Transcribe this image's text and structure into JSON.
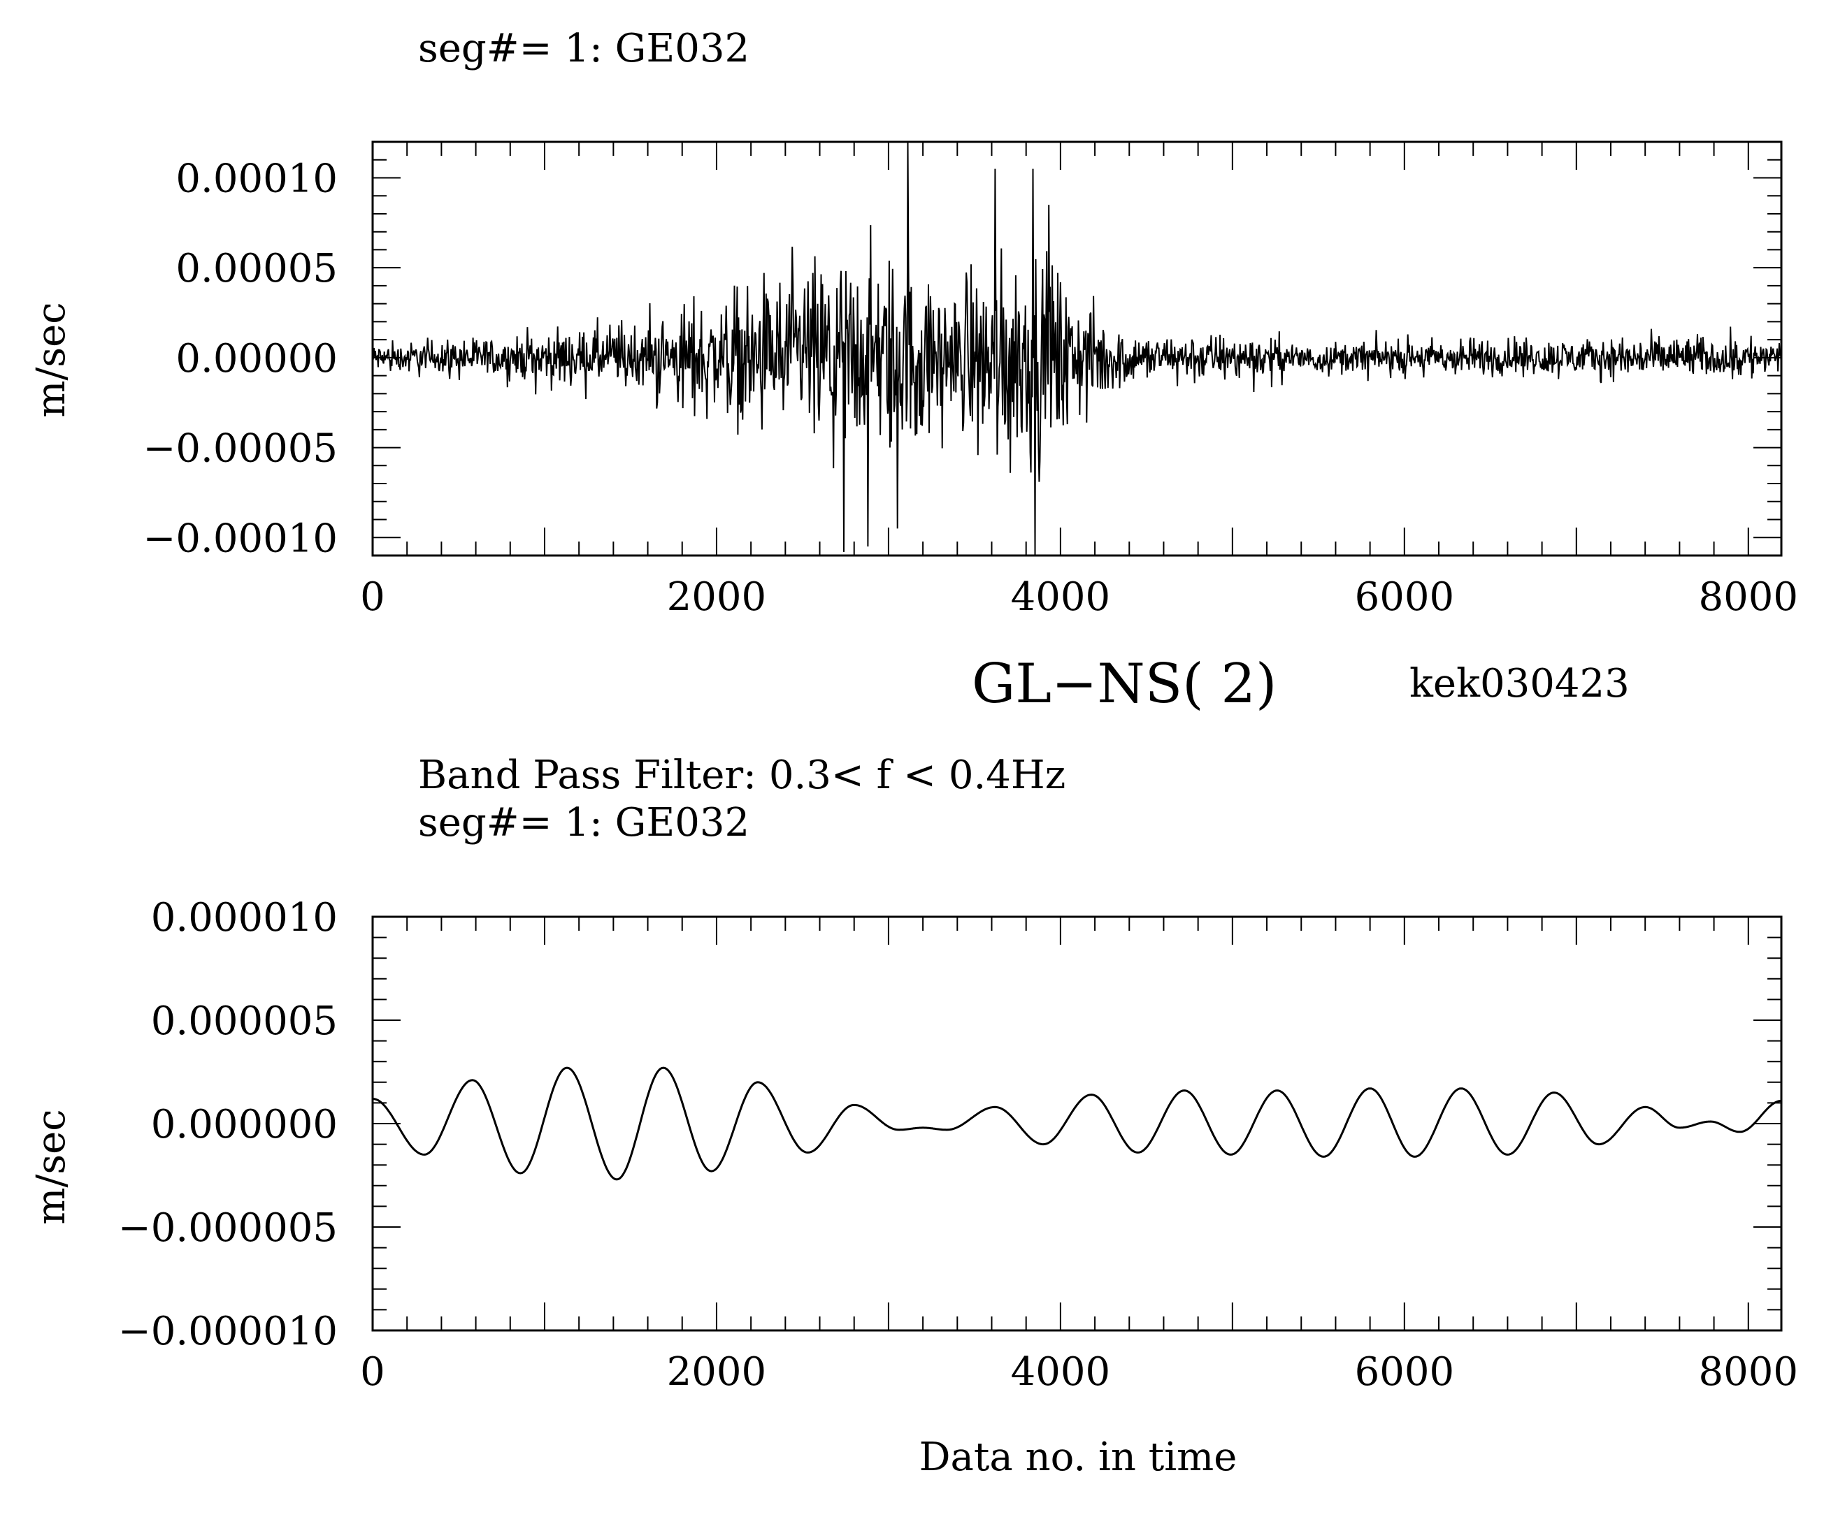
{
  "page": {
    "top_title": "seg#=  1: GE032",
    "center_label": "GL−NS( 2)",
    "center_tag": "kek030423",
    "bottom_title_line1": "Band Pass Filter:  0.3< f <  0.4Hz",
    "bottom_title_line2": "seg#=  1: GE032",
    "xlabel": "Data no. in time"
  },
  "chart_data": [
    {
      "type": "line",
      "title": "seg#=  1: GE032",
      "xlabel": "",
      "ylabel": "m/sec",
      "xlim": [
        0,
        8192
      ],
      "ylim": [
        -0.00011,
        0.00012
      ],
      "xticks": [
        0,
        2000,
        4000,
        6000,
        8000
      ],
      "xtick_labels": [
        "0",
        "2000",
        "4000",
        "6000",
        "8000"
      ],
      "yticks": [
        0.0001,
        5e-05,
        0.0,
        -5e-05,
        -0.0001
      ],
      "ytick_labels": [
        "0.00010",
        "0.00005",
        "0.00000",
        "−0.00005",
        "−0.00010"
      ],
      "grid": false,
      "legend": "none",
      "series": [
        {
          "kind": "noisy-envelope",
          "n_points": 8192,
          "envelope_x": [
            0,
            500,
            1000,
            1400,
            1700,
            2000,
            2300,
            2600,
            2900,
            3100,
            3300,
            3500,
            3700,
            3900,
            4100,
            4300,
            4500,
            5000,
            5500,
            6000,
            6500,
            7000,
            7500,
            8192
          ],
          "envelope_y": [
            1.2e-05,
            1.4e-05,
            2e-05,
            2.5e-05,
            3.5e-05,
            4.5e-05,
            6e-05,
            7.5e-05,
            8e-05,
            7.8e-05,
            6e-05,
            6.5e-05,
            8.5e-05,
            8e-05,
            5e-05,
            3e-05,
            1.8e-05,
            1.8e-05,
            1.2e-05,
            1.4e-05,
            1.6e-05,
            1.5e-05,
            1.7e-05,
            1.5e-05
          ],
          "spikes": [
            {
              "x": 3110,
              "y": 0.00012
            },
            {
              "x": 3050,
              "y": -9.5e-05
            },
            {
              "x": 2740,
              "y": -0.000108
            },
            {
              "x": 2880,
              "y": -0.000105
            },
            {
              "x": 3850,
              "y": -0.00011
            },
            {
              "x": 3620,
              "y": 0.000105
            },
            {
              "x": 3840,
              "y": 0.000105
            },
            {
              "x": 3930,
              "y": 8.5e-05
            }
          ]
        }
      ]
    },
    {
      "type": "line",
      "title": "Band Pass Filter:  0.3< f <  0.4Hz | seg#=  1: GE032",
      "xlabel": "Data no. in time",
      "ylabel": "m/sec",
      "xlim": [
        0,
        8192
      ],
      "ylim": [
        -1e-05,
        1e-05
      ],
      "xticks": [
        0,
        2000,
        4000,
        6000,
        8000
      ],
      "xtick_labels": [
        "0",
        "2000",
        "4000",
        "6000",
        "8000"
      ],
      "yticks": [
        1e-05,
        5e-06,
        0.0,
        -5e-06,
        -1e-05
      ],
      "ytick_labels": [
        "0.000010",
        "0.000005",
        "0.000000",
        "−0.000005",
        "−0.000010"
      ],
      "grid": false,
      "legend": "none",
      "series": [
        {
          "kind": "extrema-curve",
          "extrema_x": [
            0,
            300,
            580,
            860,
            1130,
            1420,
            1690,
            1970,
            2240,
            2530,
            2800,
            3060,
            3200,
            3340,
            3620,
            3900,
            4180,
            4450,
            4720,
            4990,
            5260,
            5530,
            5800,
            6060,
            6330,
            6600,
            6870,
            7130,
            7400,
            7600,
            7780,
            7950,
            8192
          ],
          "extrema_y": [
            1.2e-06,
            -1.5e-06,
            2.1e-06,
            -2.4e-06,
            2.7e-06,
            -2.7e-06,
            2.7e-06,
            -2.3e-06,
            2e-06,
            -1.4e-06,
            9e-07,
            -3e-07,
            -2e-07,
            -3e-07,
            8e-07,
            -1e-06,
            1.4e-06,
            -1.4e-06,
            1.6e-06,
            -1.5e-06,
            1.6e-06,
            -1.6e-06,
            1.7e-06,
            -1.6e-06,
            1.7e-06,
            -1.5e-06,
            1.5e-06,
            -1e-06,
            8e-07,
            -2e-07,
            1e-07,
            -4e-07,
            1.1e-06
          ]
        }
      ]
    }
  ]
}
